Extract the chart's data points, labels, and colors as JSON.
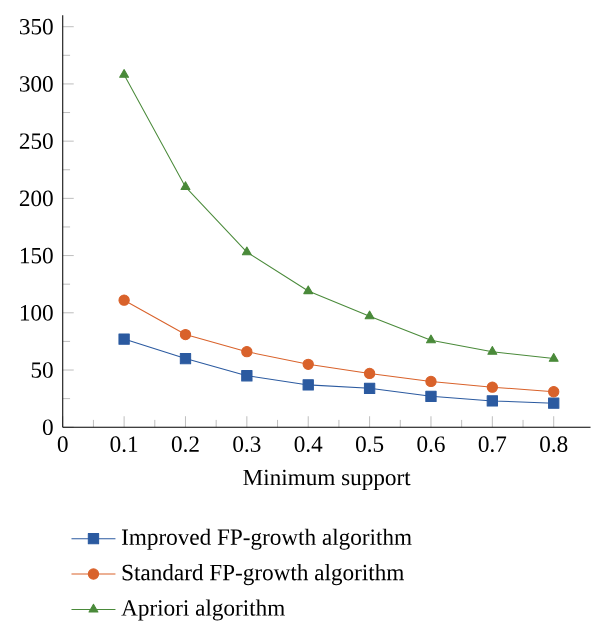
{
  "chart_data": {
    "type": "line",
    "xlabel": "Minimum support",
    "x": [
      0.1,
      0.2,
      0.3,
      0.4,
      0.5,
      0.6,
      0.7,
      0.8
    ],
    "series": [
      {
        "name": "Improved FP-growth algorithm",
        "color": "#2b5aa0",
        "marker": "square",
        "values": [
          77,
          60,
          45,
          37,
          34,
          27,
          23,
          21
        ]
      },
      {
        "name": "Standard FP-growth algorithm",
        "color": "#d9622b",
        "marker": "circle",
        "values": [
          111,
          81,
          66,
          55,
          47,
          40,
          35,
          31
        ]
      },
      {
        "name": "Apriori algorithm",
        "color": "#4a8a3a",
        "marker": "triangle",
        "values": [
          308,
          210,
          153,
          119,
          97,
          76,
          66,
          60
        ]
      }
    ],
    "xlim": [
      0,
      0.86
    ],
    "ylim": [
      0,
      360
    ],
    "xticks": [
      0,
      0.1,
      0.2,
      0.3,
      0.4,
      0.5,
      0.6,
      0.7,
      0.8
    ],
    "yticks": [
      0,
      50,
      100,
      150,
      200,
      250,
      300,
      350
    ],
    "grid": false,
    "legend": "bottom",
    "line_style": "solid"
  }
}
